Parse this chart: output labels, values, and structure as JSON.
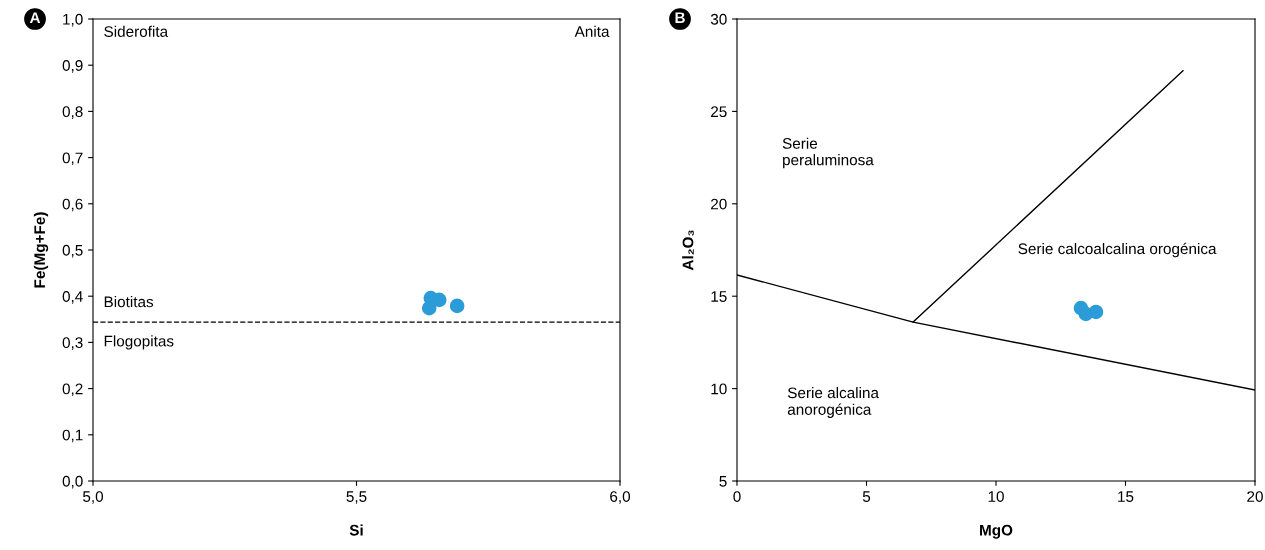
{
  "chart_data": [
    {
      "type": "scatter",
      "xlabel": "Si",
      "ylabel": "Fe(Mg+Fe)",
      "annotations": [
        "A",
        "Siderofita",
        "Anita",
        "Biotitas",
        "Flogopitas"
      ],
      "series": [
        {
          "color": "#2b9cd8",
          "marker": "circle",
          "x": [
            5.641,
            5.657,
            5.638,
            5.691
          ],
          "values": [
            0.396,
            0.392,
            0.374,
            0.379
          ]
        }
      ],
      "ref_lines": [
        {
          "axis": "y",
          "value": 0.344,
          "line_style": "dashed",
          "color": "#000000"
        }
      ],
      "xlim": [
        5.0,
        6.0
      ],
      "xticks": [
        {
          "value": 5.0,
          "label": "5,0"
        },
        {
          "value": 5.5,
          "label": "5,5"
        },
        {
          "value": 6.0,
          "label": "6,0"
        }
      ],
      "ylim": [
        0,
        1.0
      ],
      "yticks": [
        {
          "value": 0,
          "label": "0,0"
        },
        {
          "value": 0.1,
          "label": "0,1"
        },
        {
          "value": 0.2,
          "label": "0,2"
        },
        {
          "value": 0.3,
          "label": "0,3"
        },
        {
          "value": 0.4,
          "label": "0,4"
        },
        {
          "value": 0.5,
          "label": "0,5"
        },
        {
          "value": 0.6,
          "label": "0,6"
        },
        {
          "value": 0.7,
          "label": "0,7"
        },
        {
          "value": 0.8,
          "label": "0,8"
        },
        {
          "value": 0.9,
          "label": "0,9"
        },
        {
          "value": 1.0,
          "label": "1,0"
        }
      ],
      "grid": false
    },
    {
      "type": "scatter",
      "xlabel": "MgO",
      "ylabel": "Al₂O₃",
      "annotations": [
        "B",
        "Serie\nperaluminosa",
        "Serie calcoalcalina orogénica",
        "Serie alcalina\nanorogénica"
      ],
      "series": [
        {
          "color": "#2b9cd8",
          "marker": "circle",
          "x": [
            13.28,
            13.47,
            13.86
          ],
          "values": [
            14.36,
            14.04,
            14.15
          ]
        },
        {
          "type": "line",
          "color": "#000000",
          "x": [
            0,
            6.8,
            20
          ],
          "values": [
            16.15,
            13.6,
            9.92
          ]
        },
        {
          "type": "line",
          "color": "#000000",
          "x": [
            6.8,
            17.22
          ],
          "values": [
            13.6,
            27.2
          ]
        }
      ],
      "xlim": [
        0,
        20
      ],
      "xticks": [
        0,
        5,
        10,
        15,
        20
      ],
      "ylim": [
        5,
        30
      ],
      "yticks": [
        5,
        10,
        15,
        20,
        25,
        30
      ],
      "grid": false
    }
  ]
}
